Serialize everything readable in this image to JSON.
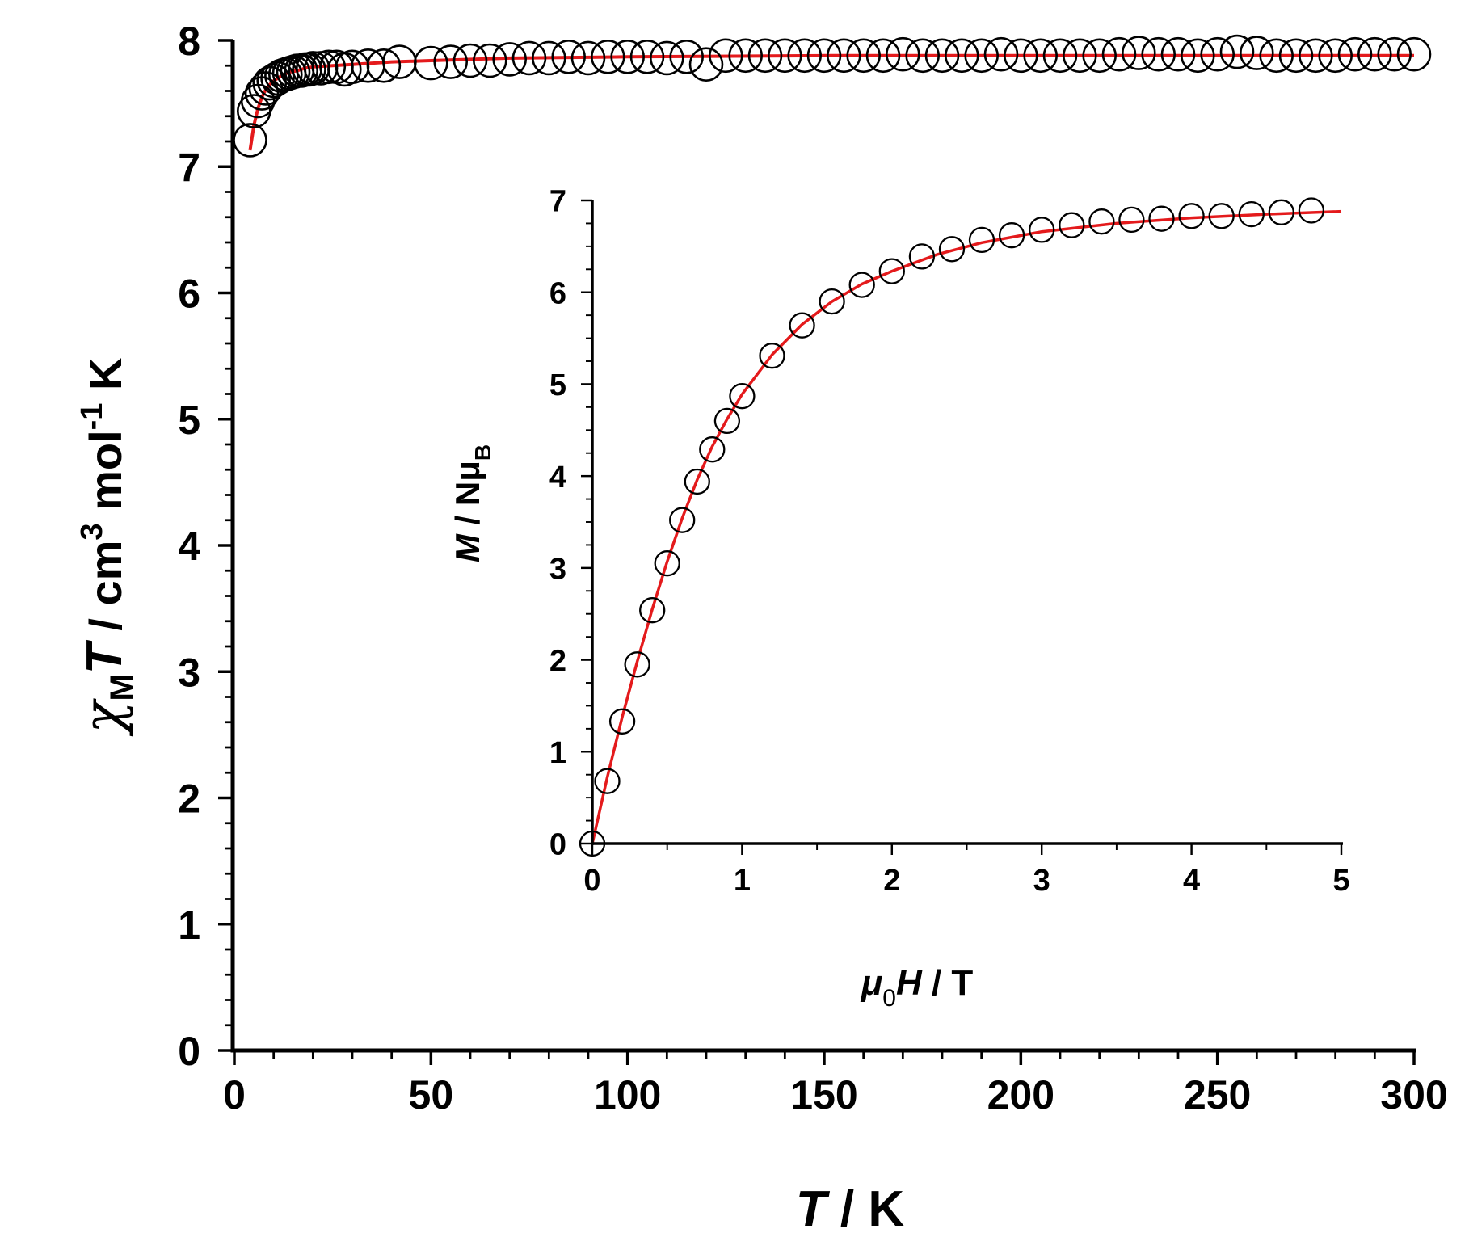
{
  "chart_data": [
    {
      "id": "main",
      "type": "scatter",
      "title": "",
      "xlabel": "T / K",
      "ylabel": "χMT / cm3 mol-1 K",
      "xlabel_parts": {
        "var": "T",
        "unit": " / K"
      },
      "ylabel_parts": {
        "chi": "χ",
        "sub": "M",
        "var": "T",
        "unit": " / cm",
        "sup1": "3",
        "mol": " mol",
        "sup2": "-1",
        "k": " K"
      },
      "xlim": [
        -10,
        300
      ],
      "ylim": [
        0,
        8
      ],
      "xticks": [
        0,
        50,
        100,
        150,
        200,
        250,
        300
      ],
      "yticks": [
        0,
        1,
        2,
        3,
        4,
        5,
        6,
        7,
        8
      ],
      "grid": false,
      "legend": "none",
      "series": [
        {
          "name": "experimental",
          "style": "open-circle",
          "x": [
            4,
            5,
            6,
            7,
            8,
            9,
            10,
            11,
            12,
            13,
            14,
            15,
            16,
            17,
            18,
            19,
            20,
            22,
            24,
            26,
            28,
            30,
            34,
            38,
            42,
            50,
            55,
            60,
            65,
            70,
            75,
            80,
            85,
            90,
            95,
            100,
            105,
            110,
            115,
            120,
            125,
            130,
            135,
            140,
            145,
            150,
            155,
            160,
            165,
            170,
            175,
            180,
            185,
            190,
            195,
            200,
            205,
            210,
            215,
            220,
            225,
            230,
            235,
            240,
            245,
            250,
            255,
            260,
            265,
            270,
            275,
            280,
            285,
            290,
            295,
            300
          ],
          "y": [
            7.21,
            7.44,
            7.52,
            7.58,
            7.62,
            7.66,
            7.68,
            7.7,
            7.72,
            7.73,
            7.74,
            7.75,
            7.76,
            7.76,
            7.77,
            7.77,
            7.78,
            7.78,
            7.79,
            7.79,
            7.77,
            7.79,
            7.8,
            7.8,
            7.83,
            7.82,
            7.83,
            7.84,
            7.84,
            7.85,
            7.86,
            7.86,
            7.87,
            7.86,
            7.87,
            7.87,
            7.87,
            7.86,
            7.87,
            7.81,
            7.88,
            7.88,
            7.88,
            7.88,
            7.88,
            7.88,
            7.88,
            7.88,
            7.88,
            7.89,
            7.88,
            7.88,
            7.88,
            7.88,
            7.89,
            7.88,
            7.88,
            7.88,
            7.88,
            7.88,
            7.89,
            7.9,
            7.89,
            7.89,
            7.88,
            7.89,
            7.91,
            7.9,
            7.88,
            7.88,
            7.88,
            7.88,
            7.89,
            7.89,
            7.89,
            7.89
          ]
        },
        {
          "name": "fit",
          "style": "red-line",
          "x": [
            4,
            5,
            6,
            7,
            8,
            9,
            10,
            12,
            14,
            16,
            18,
            20,
            25,
            30,
            40,
            50,
            70,
            100,
            150,
            200,
            250,
            300
          ],
          "y": [
            7.13,
            7.33,
            7.46,
            7.55,
            7.61,
            7.65,
            7.68,
            7.72,
            7.75,
            7.76,
            7.78,
            7.79,
            7.8,
            7.81,
            7.83,
            7.84,
            7.86,
            7.87,
            7.88,
            7.88,
            7.88,
            7.88
          ]
        }
      ]
    },
    {
      "id": "inset",
      "type": "scatter",
      "title": "",
      "xlabel": "μ0H / T",
      "ylabel": "M / NμB",
      "xlabel_parts": {
        "mu": "μ",
        "sub": "0",
        "var": "H",
        "unit": "  / T"
      },
      "ylabel_parts": {
        "var": "M",
        "unit": " / Nμ",
        "sub": "B"
      },
      "xlim": [
        0,
        5
      ],
      "ylim": [
        0,
        7
      ],
      "xticks": [
        0,
        1,
        2,
        3,
        4,
        5
      ],
      "yticks": [
        0,
        1,
        2,
        3,
        4,
        5,
        6,
        7
      ],
      "grid": false,
      "legend": "none",
      "series": [
        {
          "name": "experimental",
          "style": "open-circle",
          "x": [
            0,
            0.1,
            0.2,
            0.3,
            0.4,
            0.5,
            0.6,
            0.7,
            0.8,
            0.9,
            1.0,
            1.2,
            1.4,
            1.6,
            1.8,
            2.0,
            2.2,
            2.4,
            2.6,
            2.8,
            3.0,
            3.2,
            3.4,
            3.6,
            3.8,
            4.0,
            4.2,
            4.4,
            4.6,
            4.8
          ],
          "y": [
            0,
            0.68,
            1.33,
            1.95,
            2.54,
            3.05,
            3.52,
            3.94,
            4.29,
            4.6,
            4.87,
            5.31,
            5.64,
            5.9,
            6.08,
            6.23,
            6.39,
            6.47,
            6.57,
            6.62,
            6.68,
            6.73,
            6.77,
            6.79,
            6.8,
            6.83,
            6.83,
            6.85,
            6.87,
            6.89
          ]
        },
        {
          "name": "fit",
          "style": "red-line",
          "x": [
            0,
            0.1,
            0.2,
            0.3,
            0.4,
            0.5,
            0.6,
            0.7,
            0.8,
            0.9,
            1.0,
            1.2,
            1.4,
            1.6,
            1.8,
            2.0,
            2.3,
            2.6,
            3.0,
            3.5,
            4.0,
            4.5,
            5.0
          ],
          "y": [
            0,
            0.72,
            1.38,
            1.98,
            2.55,
            3.07,
            3.54,
            3.96,
            4.32,
            4.62,
            4.89,
            5.32,
            5.65,
            5.9,
            6.09,
            6.23,
            6.41,
            6.54,
            6.66,
            6.75,
            6.81,
            6.85,
            6.88
          ]
        }
      ]
    }
  ]
}
